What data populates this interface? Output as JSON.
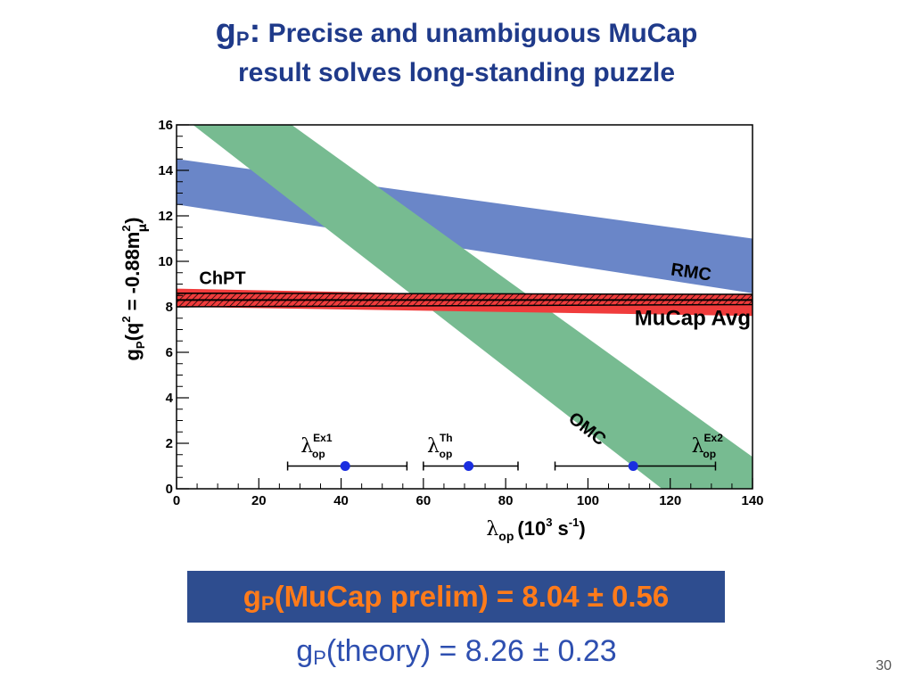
{
  "title": {
    "symbol": "g",
    "symbol_sub": "P",
    "separator": ":",
    "line1": "Precise and unambiguous MuCap",
    "line2": "result solves long-standing puzzle"
  },
  "chart_data": {
    "type": "area",
    "xlabel_main": "λ",
    "xlabel_sub": "op",
    "xlabel_rest": "(10",
    "xlabel_sup": "3",
    "xlabel_unit": " s",
    "xlabel_unit_sup": "-1",
    "xlabel_close": ")",
    "ylabel_main": "g",
    "ylabel_sub": "P",
    "ylabel_rest": "(q",
    "ylabel_sup": "2",
    "ylabel_mid": " = -0.88m",
    "ylabel_sup2": "2",
    "ylabel_sub2": "μ",
    "ylabel_close": ")",
    "xlim": [
      0,
      140
    ],
    "ylim": [
      0,
      16
    ],
    "xticks": [
      "0",
      "20",
      "40",
      "60",
      "80",
      "100",
      "120",
      "140"
    ],
    "yticks": [
      "0",
      "2",
      "4",
      "6",
      "8",
      "10",
      "12",
      "14",
      "16"
    ],
    "grid": false,
    "bands": [
      {
        "name": "RMC",
        "color": "#6a86c8",
        "x": [
          0,
          140
        ],
        "upper": [
          14.5,
          11.0
        ],
        "lower": [
          12.5,
          8.6
        ]
      },
      {
        "name": "OMC",
        "color": "#77bb91",
        "x_upper": [
          28,
          140
        ],
        "x_lower": [
          4,
          140
        ],
        "upper_at": [
          16,
          1.4
        ],
        "lower_at": [
          16,
          0
        ]
      },
      {
        "name": "ChPT",
        "color": "#f03c3c",
        "x": [
          0,
          140
        ],
        "upper": [
          8.8,
          8.3
        ],
        "lower": [
          8.0,
          7.6
        ]
      }
    ],
    "mucap_avg": {
      "name": "MuCap Avg",
      "x": [
        0,
        140
      ],
      "upper": [
        8.6,
        8.55
      ],
      "lower": [
        8.0,
        8.1
      ],
      "center": 8.3
    },
    "points": [
      {
        "label_main": "λ",
        "label_sup": "Ex1",
        "label_sub": "op",
        "x": 41,
        "y": 1.0,
        "xerr_low": 27,
        "xerr_high": 56
      },
      {
        "label_main": "λ",
        "label_sup": "Th",
        "label_sub": "op",
        "x": 71,
        "y": 1.0,
        "xerr_low": 60,
        "xerr_high": 83
      },
      {
        "label_main": "λ",
        "label_sup": "Ex2",
        "label_sub": "op",
        "x": 111,
        "y": 1.0,
        "xerr_low": 92,
        "xerr_high": 131
      }
    ],
    "colors": {
      "point": "#1a2ee0",
      "axis": "#000000"
    }
  },
  "result": {
    "symbol": "g",
    "symbol_sub": "P",
    "text": "(MuCap prelim) = 8.04 ± 0.56"
  },
  "theory": {
    "symbol": "g",
    "symbol_sub": "P",
    "text": "(theory) = 8.26 ± 0.23"
  },
  "page_number": "30"
}
